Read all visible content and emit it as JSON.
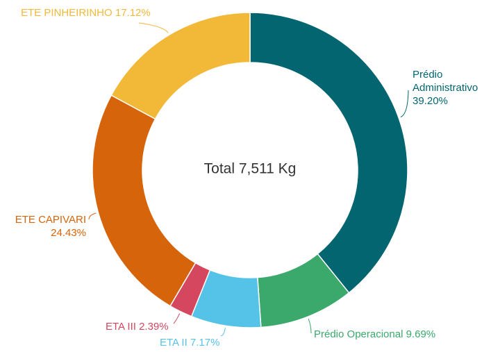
{
  "chart_data": {
    "type": "donut",
    "center_text": "Total 7,511 Kg",
    "categories": [
      "Prédio Administrativo",
      "Prédio Operacional",
      "ETA II",
      "ETA III",
      "ETE CAPIVARI",
      "ETE PINHEIRINHO"
    ],
    "values": [
      39.2,
      9.69,
      7.17,
      2.39,
      24.43,
      17.12
    ],
    "value_labels": [
      "39.20%",
      "9.69%",
      "7.17%",
      "2.39%",
      "24.43%",
      "17.12%"
    ],
    "colors": [
      "#02656f",
      "#3ba86c",
      "#55c2e8",
      "#d5465f",
      "#d6640b",
      "#f2b938"
    ]
  }
}
